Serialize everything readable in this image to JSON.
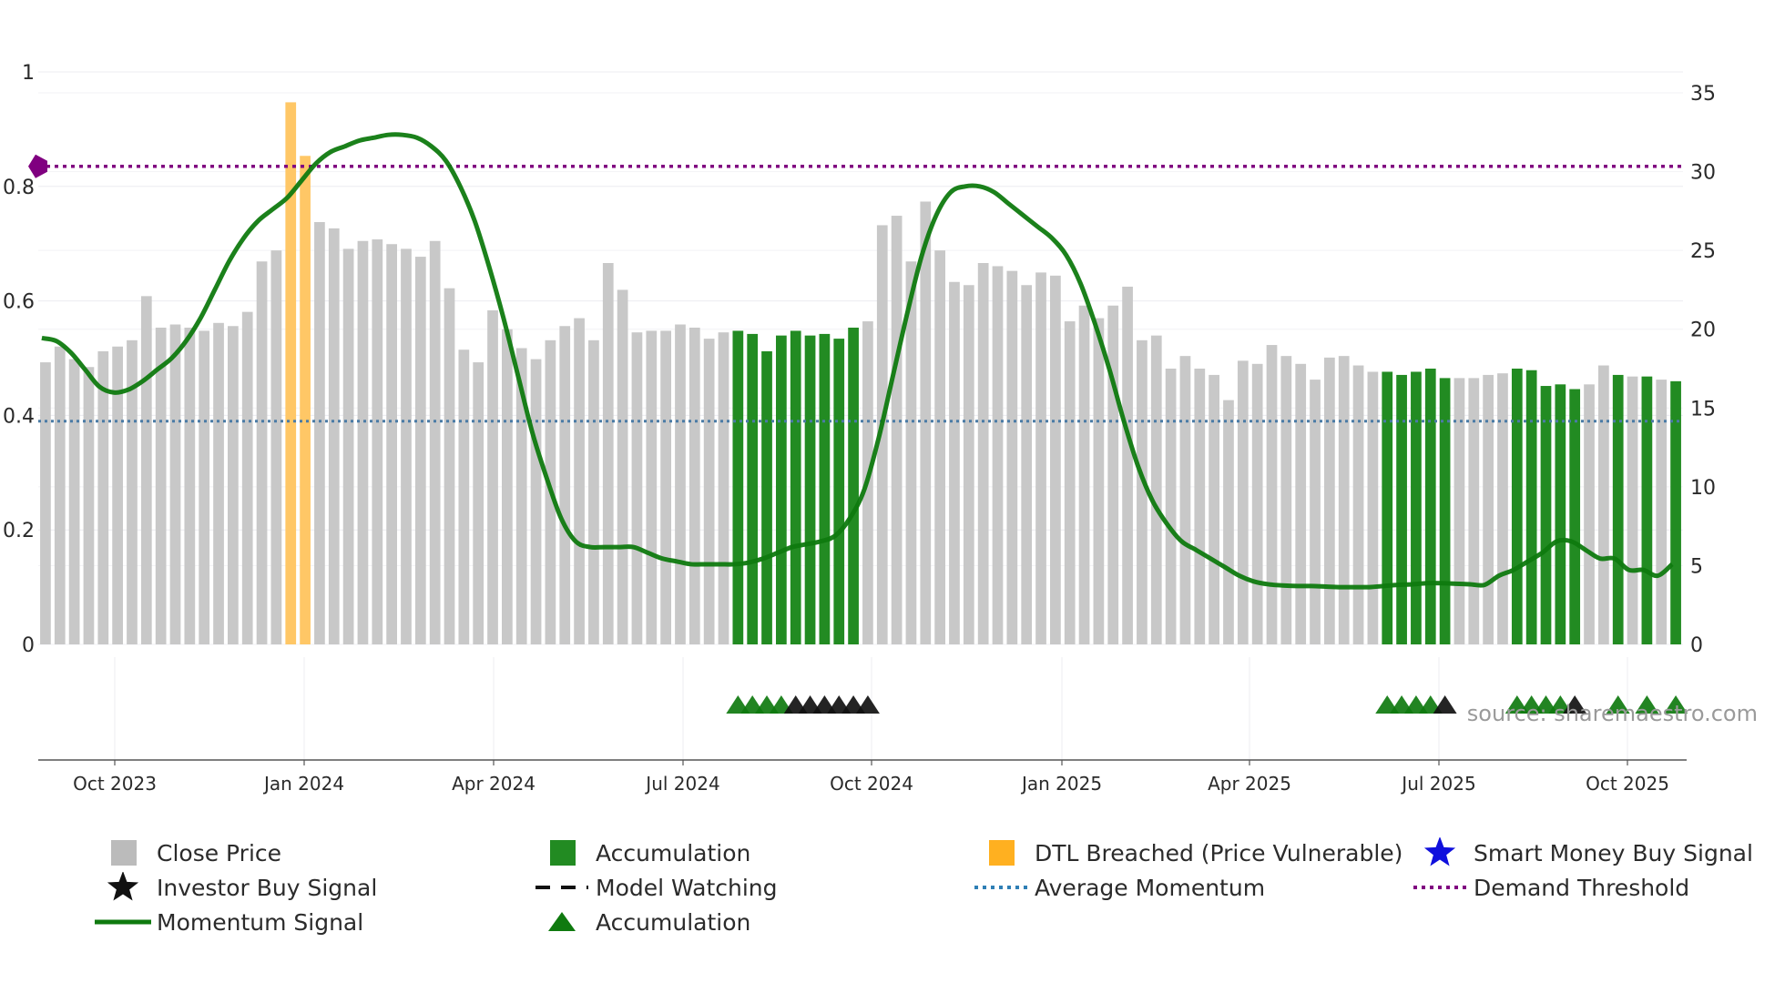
{
  "chart_data": {
    "type": "bar",
    "title": "",
    "source": "source: sharemaestro.com",
    "left_axis": {
      "ticks": [
        "0",
        "0.2",
        "0.4",
        "0.6",
        "0.8",
        "1"
      ],
      "range": [
        0,
        1
      ]
    },
    "right_axis": {
      "ticks": [
        "0",
        "5",
        "10",
        "15",
        "20",
        "25",
        "30",
        "35"
      ],
      "range": [
        0,
        35
      ]
    },
    "x_ticks": [
      "Oct 2023",
      "Jan 2024",
      "Apr 2024",
      "Jul 2024",
      "Oct 2024",
      "Jan 2025",
      "Apr 2025",
      "Jul 2025",
      "Oct 2025"
    ],
    "close_price": [
      17.9,
      18.9,
      18.1,
      17.6,
      18.6,
      18.9,
      19.3,
      22.1,
      20.1,
      20.3,
      20.1,
      19.9,
      20.4,
      20.2,
      21.1,
      24.3,
      25.0,
      34.4,
      31.0,
      26.8,
      26.4,
      25.1,
      25.6,
      25.7,
      25.4,
      25.1,
      24.6,
      25.6,
      22.6,
      18.7,
      17.9,
      21.2,
      20.0,
      18.8,
      18.1,
      19.3,
      20.2,
      20.7,
      19.3,
      24.2,
      22.5,
      19.8,
      19.9,
      19.9,
      20.3,
      20.1,
      19.4,
      19.8,
      19.9,
      19.7,
      18.6,
      19.6,
      19.9,
      19.6,
      19.7,
      19.4,
      20.1,
      20.5,
      26.6,
      27.2,
      24.3,
      28.1,
      25.0,
      23.0,
      22.8,
      24.2,
      24.0,
      23.7,
      22.8,
      23.6,
      23.4,
      20.5,
      21.5,
      20.7,
      21.5,
      22.7,
      19.3,
      19.6,
      17.5,
      18.3,
      17.5,
      17.1,
      15.5,
      18.0,
      17.8,
      19.0,
      18.3,
      17.8,
      16.8,
      18.2,
      18.3,
      17.7,
      17.3,
      17.3,
      17.1,
      17.3,
      17.5,
      16.9,
      16.9,
      16.9,
      17.1,
      17.2,
      17.5,
      17.4,
      16.4,
      16.5,
      16.2,
      16.5,
      17.7,
      17.1,
      17.0,
      17.0,
      16.8,
      16.7
    ],
    "bar_state": [
      "close",
      "close",
      "close",
      "close",
      "close",
      "close",
      "close",
      "close",
      "close",
      "close",
      "close",
      "close",
      "close",
      "close",
      "close",
      "close",
      "close",
      "dtl",
      "dtl",
      "close",
      "close",
      "close",
      "close",
      "close",
      "close",
      "close",
      "close",
      "close",
      "close",
      "close",
      "close",
      "close",
      "close",
      "close",
      "close",
      "close",
      "close",
      "close",
      "close",
      "close",
      "close",
      "close",
      "close",
      "close",
      "close",
      "close",
      "close",
      "close",
      "accum",
      "accum",
      "accum",
      "accum",
      "accum",
      "accum",
      "accum",
      "accum",
      "accum",
      "close",
      "close",
      "close",
      "close",
      "close",
      "close",
      "close",
      "close",
      "close",
      "close",
      "close",
      "close",
      "close",
      "close",
      "close",
      "close",
      "close",
      "close",
      "close",
      "close",
      "close",
      "close",
      "close",
      "close",
      "close",
      "close",
      "close",
      "close",
      "close",
      "close",
      "close",
      "close",
      "close",
      "close",
      "close",
      "close",
      "accum",
      "accum",
      "accum",
      "accum",
      "accum",
      "close",
      "close",
      "close",
      "close",
      "accum",
      "accum",
      "accum",
      "accum",
      "accum",
      "close",
      "close",
      "accum",
      "close",
      "accum",
      "close",
      "accum"
    ],
    "momentum_signal": [
      0.535,
      0.53,
      0.51,
      0.48,
      0.45,
      0.44,
      0.445,
      0.46,
      0.48,
      0.5,
      0.53,
      0.57,
      0.62,
      0.67,
      0.71,
      0.74,
      0.76,
      0.78,
      0.81,
      0.84,
      0.86,
      0.87,
      0.88,
      0.885,
      0.89,
      0.89,
      0.885,
      0.87,
      0.845,
      0.8,
      0.74,
      0.66,
      0.57,
      0.47,
      0.37,
      0.29,
      0.22,
      0.18,
      0.17,
      0.17,
      0.17,
      0.17,
      0.16,
      0.15,
      0.145,
      0.14,
      0.14,
      0.14,
      0.14,
      0.143,
      0.15,
      0.16,
      0.17,
      0.175,
      0.18,
      0.19,
      0.22,
      0.27,
      0.36,
      0.47,
      0.58,
      0.68,
      0.75,
      0.79,
      0.8,
      0.8,
      0.79,
      0.77,
      0.75,
      0.73,
      0.71,
      0.68,
      0.63,
      0.56,
      0.48,
      0.39,
      0.31,
      0.25,
      0.21,
      0.18,
      0.165,
      0.15,
      0.135,
      0.12,
      0.11,
      0.105,
      0.103,
      0.102,
      0.102,
      0.101,
      0.1,
      0.1,
      0.1,
      0.102,
      0.104,
      0.105,
      0.107,
      0.107,
      0.106,
      0.105,
      0.104,
      0.12,
      0.13,
      0.145,
      0.16,
      0.18,
      0.18,
      0.165,
      0.15,
      0.15,
      0.13,
      0.13,
      0.12,
      0.14
    ],
    "average_momentum": 0.39,
    "demand_threshold": 0.835,
    "signal_markers": [
      {
        "type": "accumulation",
        "index": 48
      },
      {
        "type": "accumulation",
        "index": 49
      },
      {
        "type": "accumulation",
        "index": 50
      },
      {
        "type": "accumulation",
        "index": 51
      },
      {
        "type": "model_watching",
        "index": 52
      },
      {
        "type": "model_watching",
        "index": 53
      },
      {
        "type": "model_watching",
        "index": 54
      },
      {
        "type": "model_watching",
        "index": 55
      },
      {
        "type": "model_watching",
        "index": 56
      },
      {
        "type": "model_watching",
        "index": 57
      },
      {
        "type": "accumulation",
        "index": 93
      },
      {
        "type": "accumulation",
        "index": 94
      },
      {
        "type": "accumulation",
        "index": 95
      },
      {
        "type": "accumulation",
        "index": 96
      },
      {
        "type": "model_watching",
        "index": 97
      },
      {
        "type": "accumulation",
        "index": 102
      },
      {
        "type": "accumulation",
        "index": 103
      },
      {
        "type": "accumulation",
        "index": 104
      },
      {
        "type": "accumulation",
        "index": 105
      },
      {
        "type": "model_watching",
        "index": 106
      },
      {
        "type": "accumulation",
        "index": 109
      },
      {
        "type": "accumulation",
        "index": 111
      },
      {
        "type": "accumulation",
        "index": 113
      }
    ],
    "legend": [
      {
        "label": "Close Price",
        "kind": "square",
        "color": "#bbbbbb"
      },
      {
        "label": "Accumulation",
        "kind": "square",
        "color": "#228b22"
      },
      {
        "label": "DTL Breached (Price Vulnerable)",
        "kind": "square",
        "color": "#ffb020"
      },
      {
        "label": "Smart Money Buy Signal",
        "kind": "star",
        "color": "#1010dd"
      },
      {
        "label": "Investor Buy Signal",
        "kind": "star",
        "color": "#111111"
      },
      {
        "label": "Model Watching",
        "kind": "dash",
        "color": "#111111"
      },
      {
        "label": "Average Momentum",
        "kind": "dot",
        "color": "#2f7fb5"
      },
      {
        "label": "Demand Threshold",
        "kind": "dot",
        "color": "#800080"
      },
      {
        "label": "Momentum Signal",
        "kind": "line",
        "color": "#0f7a0f"
      },
      {
        "label": "Accumulation",
        "kind": "triangle",
        "color": "#0f7a0f"
      }
    ],
    "colors": {
      "close": "#c8c8c8",
      "accum": "#228b22",
      "dtl": "#ffc766",
      "momentum": "#0f7a0f",
      "average": "#4a7ba6",
      "threshold": "#800080",
      "watching": "#111111"
    }
  }
}
